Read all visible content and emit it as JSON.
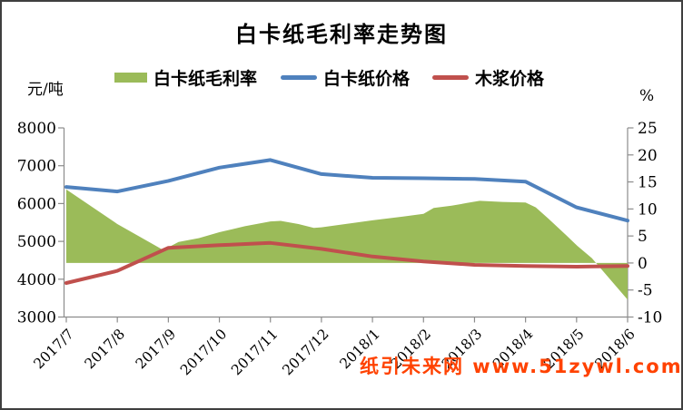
{
  "title": "白卡纸毛利率走势图",
  "axis_left": {
    "unit_label": "元/吨",
    "ticks": [
      "8000",
      "7000",
      "6000",
      "5000",
      "4000",
      "3000"
    ]
  },
  "axis_right": {
    "unit_label": "%",
    "ticks": [
      "25",
      "20",
      "15",
      "10",
      "5",
      "0",
      "-5",
      "-10"
    ]
  },
  "legend": {
    "items": [
      {
        "label": "白卡纸毛利率",
        "color": "#9bbb59",
        "swatch": "area"
      },
      {
        "label": "白卡纸价格",
        "color": "#4f81bd",
        "swatch": "line"
      },
      {
        "label": "木浆价格",
        "color": "#c0504d",
        "swatch": "line"
      }
    ]
  },
  "watermark": {
    "text": "纸引未来网 www.51zywl.com",
    "color": "#ff4200"
  },
  "chart_data": {
    "type": "line",
    "subtype": "combo-area-line",
    "title": "白卡纸毛利率走势图",
    "categories": [
      "2017/7",
      "2017/8",
      "2017/9",
      "2017/10",
      "2017/11",
      "2017/12",
      "2018/1",
      "2018/2",
      "2018/3",
      "2018/4",
      "2018/5",
      "2018/6"
    ],
    "left_ylim": [
      3000,
      8000
    ],
    "right_ylim": [
      -10,
      25
    ],
    "grid": false,
    "legend_position": "top",
    "x_label_rotation_deg": -45,
    "axis_color": "#8c8c8c",
    "series": [
      {
        "name": "白卡纸毛利率",
        "chart_type": "area",
        "axis": "right",
        "unit": "%",
        "color": "#9bbb59",
        "values": [
          13.6,
          7.2,
          2.9,
          5.7,
          7.7,
          6.6,
          7.9,
          9.1,
          11.4,
          11.2,
          3.3,
          -6.8
        ],
        "trace": [
          [
            0.0,
            13.6
          ],
          [
            1.0,
            7.2
          ],
          [
            1.9,
            2.4
          ],
          [
            2.2,
            3.9
          ],
          [
            2.6,
            4.6
          ],
          [
            3.0,
            5.7
          ],
          [
            3.5,
            6.8
          ],
          [
            4.0,
            7.7
          ],
          [
            4.2,
            7.8
          ],
          [
            4.55,
            7.2
          ],
          [
            4.85,
            6.5
          ],
          [
            5.0,
            6.6
          ],
          [
            5.55,
            7.3
          ],
          [
            6.0,
            7.9
          ],
          [
            6.6,
            8.6
          ],
          [
            7.0,
            9.1
          ],
          [
            7.2,
            10.2
          ],
          [
            7.55,
            10.6
          ],
          [
            7.85,
            11.1
          ],
          [
            8.1,
            11.5
          ],
          [
            8.55,
            11.3
          ],
          [
            9.0,
            11.2
          ],
          [
            9.2,
            10.3
          ],
          [
            9.45,
            8.2
          ],
          [
            9.8,
            5.1
          ],
          [
            10.0,
            3.3
          ],
          [
            10.3,
            0.9
          ],
          [
            11.0,
            -6.8
          ]
        ]
      },
      {
        "name": "白卡纸价格",
        "chart_type": "line",
        "axis": "left",
        "unit": "元/吨",
        "color": "#4f81bd",
        "values": [
          6440,
          6320,
          6600,
          6950,
          7150,
          6780,
          6680,
          6670,
          6650,
          6580,
          5900,
          5550
        ]
      },
      {
        "name": "木浆价格",
        "chart_type": "line",
        "axis": "left",
        "unit": "元/吨",
        "color": "#c0504d",
        "values": [
          3900,
          4220,
          4830,
          4900,
          4960,
          4800,
          4600,
          4470,
          4380,
          4350,
          4330,
          4350
        ]
      }
    ]
  }
}
